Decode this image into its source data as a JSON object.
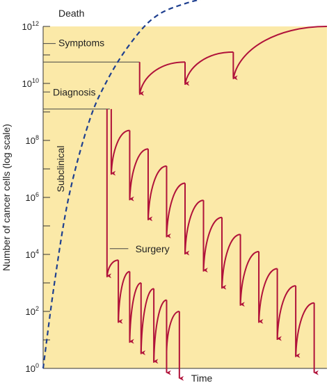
{
  "chart_data": {
    "type": "line",
    "title": "",
    "xlabel": "Time",
    "ylabel": "Number of cancer cells (log scale)",
    "y_scale": "log",
    "ylim_log10": [
      0,
      12
    ],
    "y_ticks": [
      {
        "exp": 0,
        "base": "10",
        "sup": "0"
      },
      {
        "exp": 2,
        "base": "10",
        "sup": "2"
      },
      {
        "exp": 4,
        "base": "10",
        "sup": "4"
      },
      {
        "exp": 6,
        "base": "10",
        "sup": "6"
      },
      {
        "exp": 8,
        "base": "10",
        "sup": "8"
      },
      {
        "exp": 10,
        "base": "10",
        "sup": "10"
      },
      {
        "exp": 12,
        "base": "10",
        "sup": "12"
      }
    ],
    "annotations": {
      "death": "Death",
      "symptoms": "Symptoms",
      "diagnosis": "Diagnosis",
      "subclinical": "Subclinical",
      "surgery": "Surgery"
    },
    "colors": {
      "plot_bg": "#fbe9a8",
      "treatment": "#b0123a",
      "growth": "#1e3f8f",
      "axis": "#333333"
    },
    "series": [
      {
        "key": "growth",
        "style": "dashed",
        "points": [
          [
            0.0,
            0.0
          ],
          [
            0.04,
            3.0
          ],
          [
            0.09,
            6.0
          ],
          [
            0.16,
            8.6
          ],
          [
            0.22,
            10.0
          ],
          [
            0.3,
            11.3
          ],
          [
            0.39,
            12.3
          ],
          [
            0.5,
            12.8
          ],
          [
            0.7,
            13.3
          ]
        ]
      },
      {
        "key": "symptomatic_treatment",
        "segments": [
          {
            "kind": "drop",
            "x": 0.34,
            "from": 10.75,
            "to": 9.6
          },
          {
            "kind": "grow",
            "from": [
              0.34,
              9.6
            ],
            "to": [
              0.5,
              10.75
            ]
          },
          {
            "kind": "drop",
            "x": 0.5,
            "from": 10.75,
            "to": 9.95
          },
          {
            "kind": "grow",
            "from": [
              0.5,
              9.95
            ],
            "to": [
              0.67,
              11.1
            ]
          },
          {
            "kind": "drop",
            "x": 0.67,
            "from": 11.1,
            "to": 10.15
          },
          {
            "kind": "grow",
            "from": [
              0.67,
              10.15
            ],
            "to": [
              1.0,
              12.0
            ]
          }
        ]
      },
      {
        "key": "adjuvant_chemotherapy",
        "segments": [
          {
            "kind": "drop",
            "x": 0.24,
            "from": 9.1,
            "to": 6.8
          },
          {
            "kind": "grow",
            "from": [
              0.24,
              6.8
            ],
            "to": [
              0.305,
              8.35
            ]
          },
          {
            "kind": "drop",
            "x": 0.305,
            "from": 8.35,
            "to": 5.9
          },
          {
            "kind": "grow",
            "from": [
              0.305,
              5.9
            ],
            "to": [
              0.37,
              7.7
            ]
          },
          {
            "kind": "drop",
            "x": 0.37,
            "from": 7.7,
            "to": 5.2
          },
          {
            "kind": "grow",
            "from": [
              0.37,
              5.2
            ],
            "to": [
              0.435,
              7.1
            ]
          },
          {
            "kind": "drop",
            "x": 0.435,
            "from": 7.1,
            "to": 4.6
          },
          {
            "kind": "grow",
            "from": [
              0.435,
              4.6
            ],
            "to": [
              0.5,
              6.5
            ]
          },
          {
            "kind": "drop",
            "x": 0.5,
            "from": 6.5,
            "to": 4.0
          },
          {
            "kind": "grow",
            "from": [
              0.5,
              4.0
            ],
            "to": [
              0.565,
              5.9
            ]
          },
          {
            "kind": "drop",
            "x": 0.565,
            "from": 5.9,
            "to": 3.4
          },
          {
            "kind": "grow",
            "from": [
              0.565,
              3.4
            ],
            "to": [
              0.63,
              5.3
            ]
          },
          {
            "kind": "drop",
            "x": 0.63,
            "from": 5.3,
            "to": 2.8
          },
          {
            "kind": "grow",
            "from": [
              0.63,
              2.8
            ],
            "to": [
              0.695,
              4.7
            ]
          },
          {
            "kind": "drop",
            "x": 0.695,
            "from": 4.7,
            "to": 2.2
          },
          {
            "kind": "grow",
            "from": [
              0.695,
              2.2
            ],
            "to": [
              0.76,
              4.1
            ]
          },
          {
            "kind": "drop",
            "x": 0.76,
            "from": 4.1,
            "to": 1.6
          },
          {
            "kind": "grow",
            "from": [
              0.76,
              1.6
            ],
            "to": [
              0.825,
              3.5
            ]
          },
          {
            "kind": "drop",
            "x": 0.825,
            "from": 3.5,
            "to": 1.0
          },
          {
            "kind": "grow",
            "from": [
              0.825,
              1.0
            ],
            "to": [
              0.89,
              2.9
            ]
          },
          {
            "kind": "drop",
            "x": 0.89,
            "from": 2.9,
            "to": 0.4
          },
          {
            "kind": "grow",
            "from": [
              0.89,
              0.4
            ],
            "to": [
              0.955,
              2.3
            ]
          },
          {
            "kind": "drop",
            "x": 0.955,
            "from": 2.3,
            "to": -0.2
          }
        ]
      },
      {
        "key": "surgery_plus_chemotherapy",
        "segments": [
          {
            "kind": "drop",
            "x": 0.225,
            "from": 9.1,
            "to": 3.2
          },
          {
            "kind": "grow",
            "from": [
              0.225,
              3.2
            ],
            "to": [
              0.265,
              3.8
            ]
          },
          {
            "kind": "drop",
            "x": 0.265,
            "from": 3.8,
            "to": 1.6
          },
          {
            "kind": "grow",
            "from": [
              0.265,
              1.6
            ],
            "to": [
              0.305,
              3.4
            ]
          },
          {
            "kind": "drop",
            "x": 0.305,
            "from": 3.4,
            "to": 0.9
          },
          {
            "kind": "grow",
            "from": [
              0.305,
              0.9
            ],
            "to": [
              0.345,
              3.0
            ]
          },
          {
            "kind": "drop",
            "x": 0.345,
            "from": 3.0,
            "to": 0.5
          },
          {
            "kind": "grow",
            "from": [
              0.345,
              0.5
            ],
            "to": [
              0.39,
              2.8
            ]
          },
          {
            "kind": "drop",
            "x": 0.39,
            "from": 2.8,
            "to": 0.2
          },
          {
            "kind": "grow",
            "from": [
              0.39,
              0.2
            ],
            "to": [
              0.435,
              2.4
            ]
          },
          {
            "kind": "drop",
            "x": 0.435,
            "from": 2.4,
            "to": -0.2
          },
          {
            "kind": "grow",
            "from": [
              0.435,
              0.6
            ],
            "to": [
              0.48,
              2.0
            ]
          },
          {
            "kind": "drop",
            "x": 0.48,
            "from": 2.0,
            "to": -0.4
          }
        ]
      }
    ]
  }
}
